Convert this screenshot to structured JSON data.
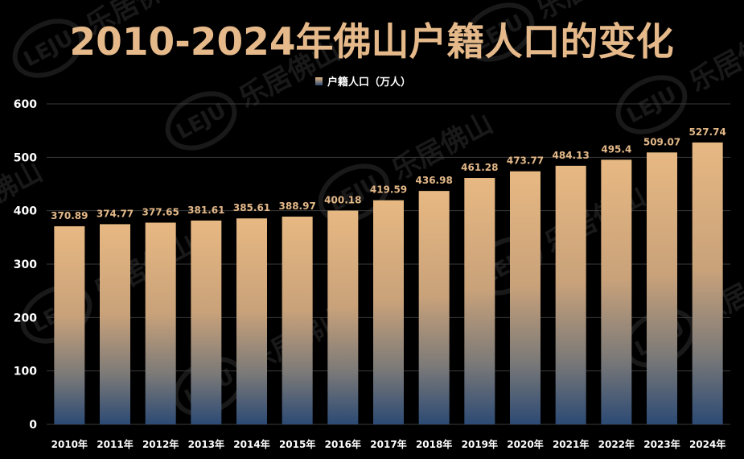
{
  "chart_data": {
    "type": "bar",
    "title": "2010-2024年佛山户籍人口的变化",
    "legend": {
      "label": "户籍人口（万人）",
      "position": "top-center"
    },
    "categories": [
      "2010年",
      "2011年",
      "2012年",
      "2013年",
      "2014年",
      "2015年",
      "2016年",
      "2017年",
      "2018年",
      "2019年",
      "2020年",
      "2021年",
      "2022年",
      "2023年",
      "2024年"
    ],
    "series": [
      {
        "name": "户籍人口（万人）",
        "values": [
          370.89,
          374.77,
          377.65,
          381.61,
          385.61,
          388.97,
          400.18,
          419.59,
          436.98,
          461.28,
          473.77,
          484.13,
          495.4,
          509.07,
          527.74
        ],
        "value_labels": [
          "370.89",
          "374.77",
          "377.65",
          "381.61",
          "385.61",
          "388.97",
          "400.18",
          "419.59",
          "436.98",
          "461.28",
          "473.77",
          "484.13",
          "495.4",
          "509.07",
          "527.74"
        ]
      }
    ],
    "ylim": [
      0,
      600
    ],
    "yticks": [
      "0",
      "100",
      "200",
      "300",
      "400",
      "500",
      "600"
    ],
    "grid": true,
    "xlabel": "",
    "ylabel": ""
  },
  "watermark": {
    "logo": "LEJU",
    "text": "乐居佛山"
  },
  "colors": {
    "background": "#000000",
    "title": "#e5b98a",
    "bar_top": "#e7b882",
    "bar_bottom": "#2c4a74",
    "grid": "#3a3a3a",
    "text": "#ffffff",
    "label": "#e3b888"
  }
}
